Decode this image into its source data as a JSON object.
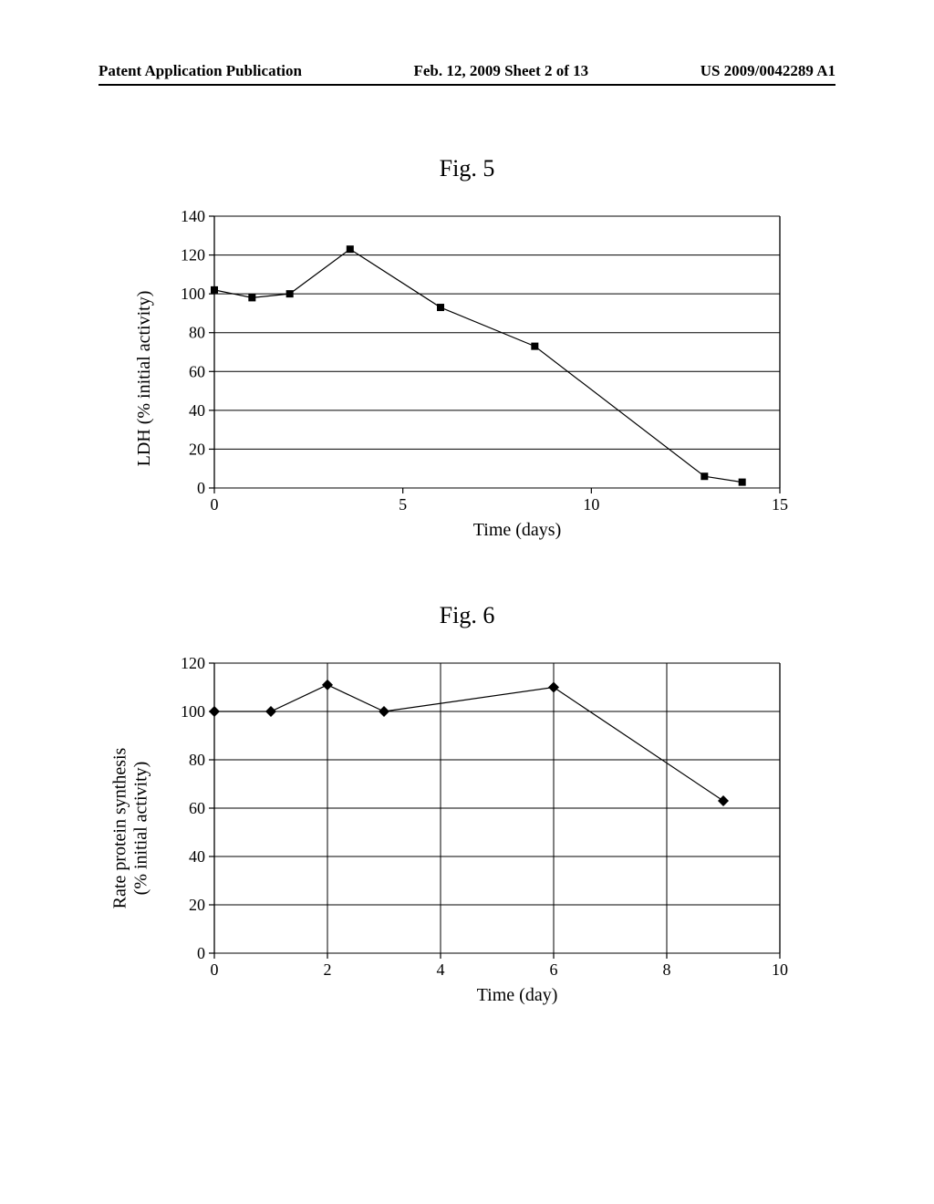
{
  "header": {
    "left": "Patent Application Publication",
    "center": "Feb. 12, 2009  Sheet 2 of 13",
    "right": "US 2009/0042289 A1"
  },
  "fig5": {
    "title": "Fig. 5",
    "type": "line",
    "xlabel": "Time (days)",
    "ylabel": "LDH (% initial activity)",
    "xlim": [
      0,
      15
    ],
    "ylim": [
      0,
      140
    ],
    "xtick_step": 5,
    "ytick_step": 20,
    "xticks": [
      0,
      5,
      10,
      15
    ],
    "yticks": [
      0,
      20,
      40,
      60,
      80,
      100,
      120,
      140
    ],
    "grid": true,
    "grid_color": "#000000",
    "axis_color": "#000000",
    "background_color": "#ffffff",
    "line_color": "#000000",
    "marker": "square",
    "marker_size": 8,
    "marker_color": "#000000",
    "line_width": 1.2,
    "label_fontsize": 20,
    "tick_fontsize": 18,
    "title_fontsize": 26,
    "points_x": [
      0,
      1,
      2,
      3.6,
      6,
      8.5,
      13,
      14
    ],
    "points_y": [
      102,
      98,
      100,
      123,
      93,
      73,
      6,
      3
    ]
  },
  "fig6": {
    "title": "Fig. 6",
    "type": "line",
    "xlabel": "Time (day)",
    "ylabel_line1": "Rate protein synthesis",
    "ylabel_line2": "(% initial activity)",
    "xlim": [
      0,
      10
    ],
    "ylim": [
      0,
      120
    ],
    "xtick_step": 2,
    "ytick_step": 20,
    "xticks": [
      0,
      2,
      4,
      6,
      8,
      10
    ],
    "yticks": [
      0,
      20,
      40,
      60,
      80,
      100,
      120
    ],
    "grid": true,
    "grid_color": "#000000",
    "axis_color": "#000000",
    "background_color": "#ffffff",
    "line_color": "#000000",
    "marker": "diamond",
    "marker_size": 8,
    "marker_color": "#000000",
    "line_width": 1.2,
    "label_fontsize": 20,
    "tick_fontsize": 18,
    "title_fontsize": 26,
    "points_x": [
      0,
      1,
      2,
      3,
      6,
      9
    ],
    "points_y": [
      100,
      100,
      111,
      100,
      110,
      63
    ]
  }
}
